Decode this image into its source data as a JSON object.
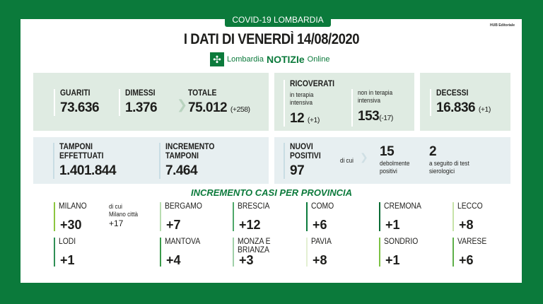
{
  "header": {
    "badge": "COVID-19 LOMBARDIA",
    "hub": "HUB Editoriale",
    "title": "I DATI DI VENERDÌ 14/08/2020",
    "logo": {
      "icon": "lombardia-rose-icon",
      "text1": "Lombardia",
      "text2": "NOTIZIe",
      "text3": "Online"
    }
  },
  "colors": {
    "brand": "#0b7a3b",
    "panel_green": "#dfebe2",
    "panel_blue": "#e7eff1"
  },
  "row1": {
    "guariti": {
      "label": "GUARITI",
      "value": "73.636"
    },
    "dimessi": {
      "label": "DIMESSI",
      "value": "1.376"
    },
    "totale": {
      "label": "TOTALE",
      "value": "75.012",
      "delta": "(+258)"
    },
    "ricoverati": {
      "label": "RICOVERATI",
      "ti_label": "in terapia intensiva",
      "ti_value": "12",
      "ti_delta": "(+1)",
      "nti_label": "non in terapia intensiva",
      "nti_value": "153",
      "nti_delta": "(-17)"
    },
    "decessi": {
      "label": "DECESSI",
      "value": "16.836",
      "delta": "(+1)"
    }
  },
  "row2": {
    "tamponi": {
      "label1": "TAMPONI",
      "label2": "EFFETTUATI",
      "value": "1.401.844"
    },
    "incremento": {
      "label1": "INCREMENTO",
      "label2": "TAMPONI",
      "value": "7.464"
    },
    "nuovi": {
      "label1": "NUOVI",
      "label2": "POSITIVI",
      "value": "97",
      "dicui": "di cui",
      "deb_value": "15",
      "deb_label1": "debolmente",
      "deb_label2": "positivi",
      "sier_value": "2",
      "sier_label1": "a seguito di test",
      "sier_label2": "sierologici"
    }
  },
  "provinces": {
    "heading": "INCREMENTO CASI PER PROVINCIA",
    "milano_city": {
      "l1": "di cui",
      "l2": "Milano città",
      "value": "+17"
    },
    "items": [
      {
        "name": "MILANO",
        "value": "+30",
        "color": "#8cc63f"
      },
      {
        "name": "BERGAMO",
        "value": "+7",
        "color": "#b8dcb0"
      },
      {
        "name": "BRESCIA",
        "value": "+12",
        "color": "#4ea86a"
      },
      {
        "name": "COMO",
        "value": "+6",
        "color": "#0b7a3b"
      },
      {
        "name": "CREMONA",
        "value": "+1",
        "color": "#0b6b34"
      },
      {
        "name": "LECCO",
        "value": "+8",
        "color": "#c6e3a8"
      },
      {
        "name": "LODI",
        "value": "+1",
        "color": "#2f8f55"
      },
      {
        "name": "MANTOVA",
        "value": "+4",
        "color": "#3a9a4a"
      },
      {
        "name": "MONZA E BRIANZA",
        "value": "+3",
        "color": "#9fd0a8"
      },
      {
        "name": "PAVIA",
        "value": "+8",
        "color": "#e3f0d3"
      },
      {
        "name": "SONDRIO",
        "value": "+1",
        "color": "#7cc243"
      },
      {
        "name": "VARESE",
        "value": "+6",
        "color": "#5fb04a"
      }
    ]
  }
}
